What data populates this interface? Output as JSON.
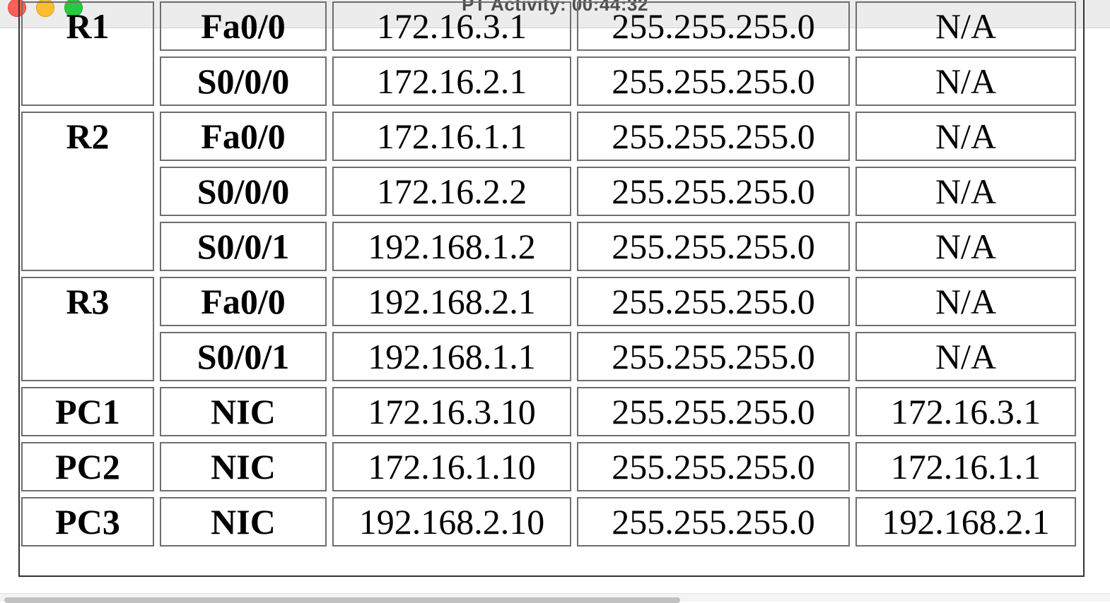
{
  "window": {
    "title": "PT Activity: 00:44:32"
  },
  "colors": {
    "close": "#fe5f57",
    "minimize": "#febc2e",
    "maximize": "#28c840"
  },
  "table": {
    "groups": [
      {
        "device": "R1",
        "rows": [
          {
            "interface": "Fa0/0",
            "ip": "172.16.3.1",
            "mask": "255.255.255.0",
            "gateway": "N/A"
          },
          {
            "interface": "S0/0/0",
            "ip": "172.16.2.1",
            "mask": "255.255.255.0",
            "gateway": "N/A"
          }
        ]
      },
      {
        "device": "R2",
        "rows": [
          {
            "interface": "Fa0/0",
            "ip": "172.16.1.1",
            "mask": "255.255.255.0",
            "gateway": "N/A"
          },
          {
            "interface": "S0/0/0",
            "ip": "172.16.2.2",
            "mask": "255.255.255.0",
            "gateway": "N/A"
          },
          {
            "interface": "S0/0/1",
            "ip": "192.168.1.2",
            "mask": "255.255.255.0",
            "gateway": "N/A"
          }
        ]
      },
      {
        "device": "R3",
        "rows": [
          {
            "interface": "Fa0/0",
            "ip": "192.168.2.1",
            "mask": "255.255.255.0",
            "gateway": "N/A"
          },
          {
            "interface": "S0/0/1",
            "ip": "192.168.1.1",
            "mask": "255.255.255.0",
            "gateway": "N/A"
          }
        ]
      },
      {
        "device": "PC1",
        "rows": [
          {
            "interface": "NIC",
            "ip": "172.16.3.10",
            "mask": "255.255.255.0",
            "gateway": "172.16.3.1"
          }
        ]
      },
      {
        "device": "PC2",
        "rows": [
          {
            "interface": "NIC",
            "ip": "172.16.1.10",
            "mask": "255.255.255.0",
            "gateway": "172.16.1.1"
          }
        ]
      },
      {
        "device": "PC3",
        "rows": [
          {
            "interface": "NIC",
            "ip": "192.168.2.10",
            "mask": "255.255.255.0",
            "gateway": "192.168.2.1"
          }
        ]
      }
    ]
  }
}
